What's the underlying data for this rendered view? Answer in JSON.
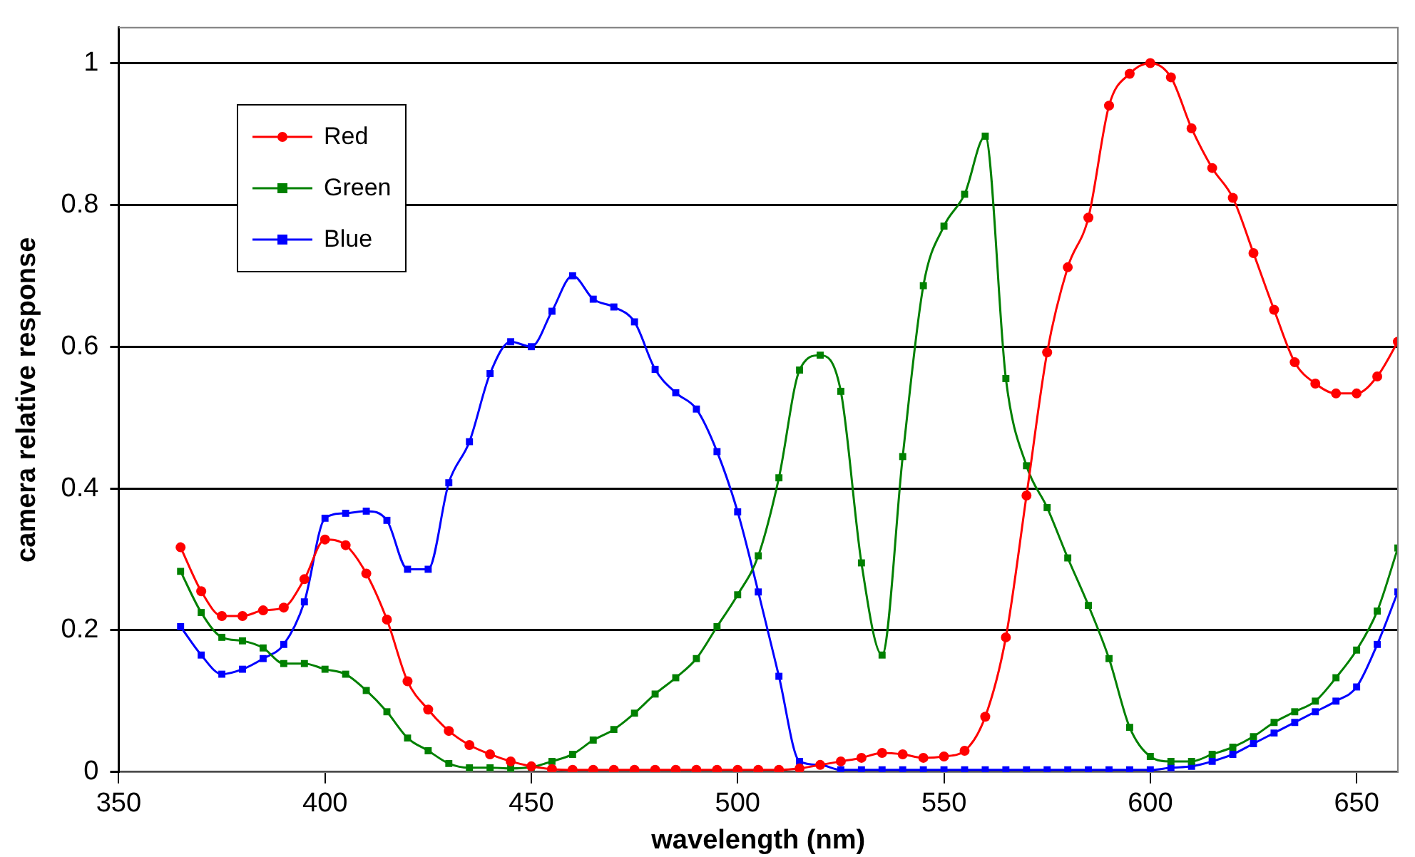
{
  "chart_data": {
    "type": "line",
    "xlabel": "wavelength (nm)",
    "ylabel": "camera relative response",
    "x": [
      365,
      370,
      375,
      380,
      385,
      390,
      395,
      400,
      405,
      410,
      415,
      420,
      425,
      430,
      435,
      440,
      445,
      450,
      455,
      460,
      465,
      470,
      475,
      480,
      485,
      490,
      495,
      500,
      505,
      510,
      515,
      520,
      525,
      530,
      535,
      540,
      545,
      550,
      555,
      560,
      565,
      570,
      575,
      580,
      585,
      590,
      595,
      600,
      605,
      610,
      615,
      620,
      625,
      630,
      635,
      640,
      645,
      650,
      655,
      660
    ],
    "series": [
      {
        "name": "Red",
        "color": "#ff0000",
        "marker": "circle",
        "values": [
          0.317,
          0.255,
          0.22,
          0.22,
          0.228,
          0.232,
          0.272,
          0.328,
          0.32,
          0.28,
          0.215,
          0.128,
          0.088,
          0.058,
          0.038,
          0.025,
          0.015,
          0.008,
          0.004,
          0.003,
          0.003,
          0.003,
          0.003,
          0.003,
          0.003,
          0.003,
          0.003,
          0.003,
          0.003,
          0.003,
          0.005,
          0.01,
          0.015,
          0.02,
          0.027,
          0.025,
          0.02,
          0.022,
          0.03,
          0.078,
          0.19,
          0.39,
          0.592,
          0.712,
          0.782,
          0.94,
          0.985,
          1.0,
          0.98,
          0.908,
          0.852,
          0.81,
          0.732,
          0.652,
          0.578,
          0.548,
          0.534,
          0.534,
          0.558,
          0.607
        ]
      },
      {
        "name": "Green",
        "color": "#008000",
        "marker": "square",
        "values": [
          0.283,
          0.225,
          0.19,
          0.185,
          0.175,
          0.153,
          0.153,
          0.145,
          0.138,
          0.115,
          0.085,
          0.048,
          0.03,
          0.012,
          0.006,
          0.006,
          0.005,
          0.007,
          0.015,
          0.025,
          0.045,
          0.06,
          0.083,
          0.11,
          0.133,
          0.16,
          0.205,
          0.25,
          0.305,
          0.415,
          0.567,
          0.588,
          0.537,
          0.295,
          0.165,
          0.445,
          0.686,
          0.77,
          0.815,
          0.897,
          0.555,
          0.432,
          0.373,
          0.302,
          0.235,
          0.16,
          0.063,
          0.022,
          0.015,
          0.015,
          0.025,
          0.035,
          0.05,
          0.07,
          0.085,
          0.1,
          0.133,
          0.172,
          0.227,
          0.316
        ]
      },
      {
        "name": "Blue",
        "color": "#0000ff",
        "marker": "square",
        "values": [
          0.205,
          0.165,
          0.138,
          0.145,
          0.16,
          0.18,
          0.24,
          0.358,
          0.365,
          0.368,
          0.355,
          0.286,
          0.286,
          0.408,
          0.466,
          0.562,
          0.607,
          0.6,
          0.65,
          0.7,
          0.667,
          0.656,
          0.635,
          0.568,
          0.535,
          0.512,
          0.452,
          0.367,
          0.254,
          0.135,
          0.015,
          0.01,
          0.003,
          0.003,
          0.003,
          0.003,
          0.003,
          0.003,
          0.003,
          0.003,
          0.003,
          0.003,
          0.003,
          0.003,
          0.003,
          0.003,
          0.003,
          0.003,
          0.006,
          0.008,
          0.015,
          0.025,
          0.04,
          0.055,
          0.07,
          0.085,
          0.1,
          0.12,
          0.18,
          0.254
        ]
      }
    ],
    "xlim": [
      350,
      660
    ],
    "xticks": [
      350,
      400,
      450,
      500,
      550,
      600,
      650
    ],
    "ylim": [
      0,
      1.05
    ],
    "yticks": [
      0,
      0.2,
      0.4,
      0.6,
      0.8,
      1
    ],
    "grid": "y",
    "legend": "top left"
  }
}
